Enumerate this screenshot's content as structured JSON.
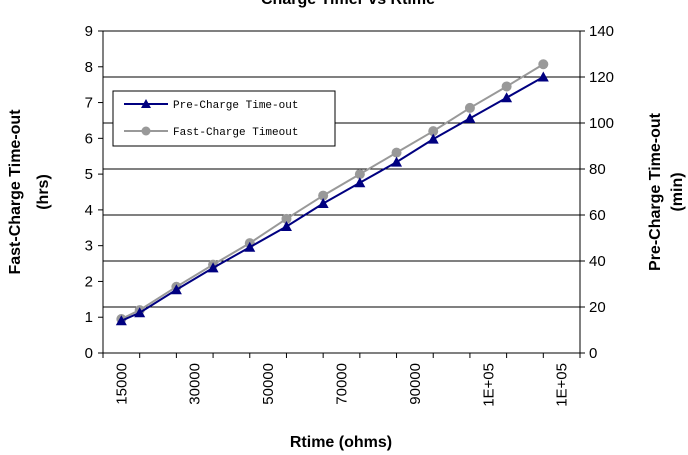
{
  "chart_data": {
    "type": "line",
    "title": "Charge Timer  vs  Rtime",
    "xlabel": "Rtime (ohms)",
    "ylabel_left": [
      "Fast-Charge Time-out",
      "(hrs)"
    ],
    "ylabel_right": [
      "Pre-Charge Time-out",
      "(min)"
    ],
    "x_tick_labels": [
      "15000",
      "30000",
      "50000",
      "70000",
      "90000",
      "1E+05",
      "1E+05"
    ],
    "ylim_left": [
      0,
      9
    ],
    "ylim_right": [
      0,
      140
    ],
    "y_ticks_left": [
      "0",
      "1",
      "2",
      "3",
      "4",
      "5",
      "6",
      "7",
      "8",
      "9"
    ],
    "y_ticks_right": [
      "0",
      "20",
      "40",
      "60",
      "80",
      "100",
      "120",
      "140"
    ],
    "x": [
      15000,
      20000,
      30000,
      40000,
      50000,
      60000,
      70000,
      80000,
      90000,
      100000,
      110000,
      120000,
      130000
    ],
    "series": [
      {
        "name": "Pre-Charge Time-out",
        "axis": "right",
        "color": "#000080",
        "marker": "triangle",
        "values": [
          14,
          17.5,
          27.5,
          37,
          46,
          55,
          65,
          74,
          83,
          93,
          102,
          111,
          120
        ]
      },
      {
        "name": "Fast-Charge Timeout",
        "axis": "left",
        "color": "#999999",
        "marker": "circle",
        "values": [
          0.95,
          1.2,
          1.85,
          2.47,
          3.07,
          3.75,
          4.4,
          5.0,
          5.6,
          6.2,
          6.85,
          7.45,
          8.07
        ]
      }
    ],
    "grid": "horizontal",
    "legend_position": "upper-left"
  }
}
